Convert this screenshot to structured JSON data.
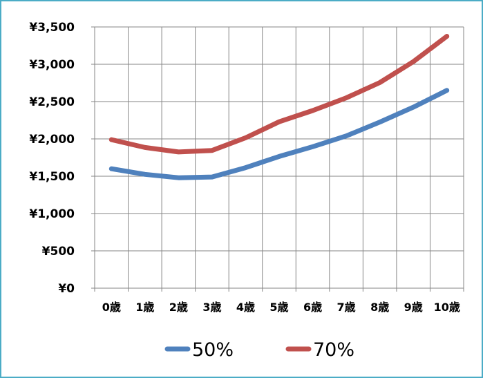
{
  "colors": {
    "frame": "#4bacc6",
    "grid": "#868686",
    "series_50": "#4f81bd",
    "series_70": "#c0504d"
  },
  "chart_data": {
    "type": "line",
    "title": "",
    "xlabel": "",
    "ylabel": "",
    "categories": [
      "0歳",
      "1歳",
      "2歳",
      "3歳",
      "4歳",
      "5歳",
      "6歳",
      "7歳",
      "8歳",
      "9歳",
      "10歳"
    ],
    "y_tick_labels": [
      "¥0",
      "¥500",
      "¥1,000",
      "¥1,500",
      "¥2,000",
      "¥2,500",
      "¥3,000",
      "¥3,500"
    ],
    "ylim": [
      0,
      3500
    ],
    "y_step": 500,
    "grid": true,
    "legend_position": "bottom",
    "series": [
      {
        "name": "50%",
        "color": "#4f81bd",
        "values": [
          1600,
          1525,
          1480,
          1490,
          1615,
          1765,
          1895,
          2040,
          2225,
          2425,
          2650
        ]
      },
      {
        "name": "70%",
        "color": "#c0504d",
        "values": [
          1990,
          1885,
          1825,
          1845,
          2015,
          2230,
          2380,
          2550,
          2755,
          3035,
          3375
        ]
      }
    ]
  }
}
